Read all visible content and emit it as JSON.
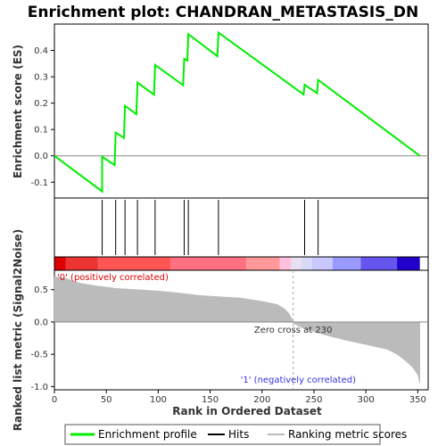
{
  "chart_data": {
    "type": "line",
    "title": "Enrichment plot: CHANDRAN_METASTASIS_DN",
    "es_panel": {
      "ylabel": "Enrichment score (ES)",
      "ylim": [
        -0.16,
        0.5
      ],
      "yticks": [
        -0.1,
        0.0,
        0.1,
        0.2,
        0.3,
        0.4
      ],
      "ytick_labels": [
        "-0.1",
        "0.0",
        "0.1",
        "0.2",
        "0.3",
        "0.4"
      ],
      "series": [
        {
          "name": "Enrichment profile",
          "color": "#00ee00",
          "x": [
            0,
            46,
            46,
            58,
            59,
            67,
            68,
            79,
            80,
            96,
            97,
            124,
            125,
            128,
            129,
            157,
            158,
            240,
            241,
            253,
            254,
            352
          ],
          "y": [
            0.0,
            -0.135,
            -0.003,
            -0.035,
            0.088,
            0.068,
            0.19,
            0.158,
            0.278,
            0.232,
            0.345,
            0.268,
            0.368,
            0.362,
            0.462,
            0.378,
            0.468,
            0.233,
            0.27,
            0.238,
            0.288,
            0.0
          ]
        }
      ]
    },
    "hits": {
      "name": "Hits",
      "x": [
        46,
        59,
        68,
        80,
        97,
        125,
        129,
        158,
        241,
        254
      ]
    },
    "color_bar": {
      "segments": [
        {
          "from": 0,
          "to": 11,
          "color": "#dd0000"
        },
        {
          "from": 11,
          "to": 42,
          "color": "#ee3333"
        },
        {
          "from": 42,
          "to": 112,
          "color": "#ff5555"
        },
        {
          "from": 112,
          "to": 185,
          "color": "#ff7080"
        },
        {
          "from": 185,
          "to": 217,
          "color": "#ff9999"
        },
        {
          "from": 217,
          "to": 228,
          "color": "#ffc0dd"
        },
        {
          "from": 228,
          "to": 238,
          "color": "#e8e0f0"
        },
        {
          "from": 238,
          "to": 248,
          "color": "#d8d8f8"
        },
        {
          "from": 248,
          "to": 268,
          "color": "#c8c8ff"
        },
        {
          "from": 268,
          "to": 295,
          "color": "#9999ff"
        },
        {
          "from": 295,
          "to": 330,
          "color": "#6655ee"
        },
        {
          "from": 330,
          "to": 352,
          "color": "#2200cc"
        }
      ]
    },
    "metric_panel": {
      "ylabel": "Ranked list metric (Signal2Noise)",
      "xlabel": "Rank in Ordered Dataset",
      "xlim": [
        0,
        360
      ],
      "xticks": [
        0,
        50,
        100,
        150,
        200,
        250,
        300,
        350
      ],
      "xtick_labels": [
        "0",
        "50",
        "100",
        "150",
        "200",
        "250",
        "300",
        "350"
      ],
      "ylim": [
        -1.05,
        0.8
      ],
      "yticks": [
        -1.0,
        -0.5,
        0.0,
        0.5
      ],
      "ytick_labels": [
        "-1.0",
        "-0.5",
        "0.0",
        "0.5"
      ],
      "series": [
        {
          "name": "Ranking metric scores",
          "color": "#bbbbbb",
          "x": [
            0,
            10,
            25,
            40,
            60,
            80,
            100,
            120,
            140,
            160,
            180,
            200,
            215,
            222,
            226,
            229,
            230,
            240,
            260,
            280,
            300,
            320,
            330,
            338,
            345,
            350,
            352
          ],
          "y": [
            0.7,
            0.68,
            0.6,
            0.56,
            0.52,
            0.5,
            0.48,
            0.45,
            0.41,
            0.39,
            0.37,
            0.32,
            0.27,
            0.2,
            0.13,
            0.04,
            -0.02,
            -0.1,
            -0.2,
            -0.28,
            -0.35,
            -0.42,
            -0.5,
            -0.6,
            -0.7,
            -0.82,
            -0.95
          ]
        }
      ],
      "zero_cross_label": "Zero cross at 230",
      "zero_cross_x": 230,
      "pos_label": "'0' (positively correlated)",
      "neg_label": "'1' (negatively correlated)",
      "pos_color": "#dd0000",
      "neg_color": "#3333dd"
    },
    "legend": {
      "entries": [
        {
          "label": "Enrichment profile",
          "color": "#00ee00"
        },
        {
          "label": "Hits",
          "color": "#000000"
        },
        {
          "label": "Ranking metric scores",
          "color": "#bbbbbb"
        }
      ]
    }
  }
}
